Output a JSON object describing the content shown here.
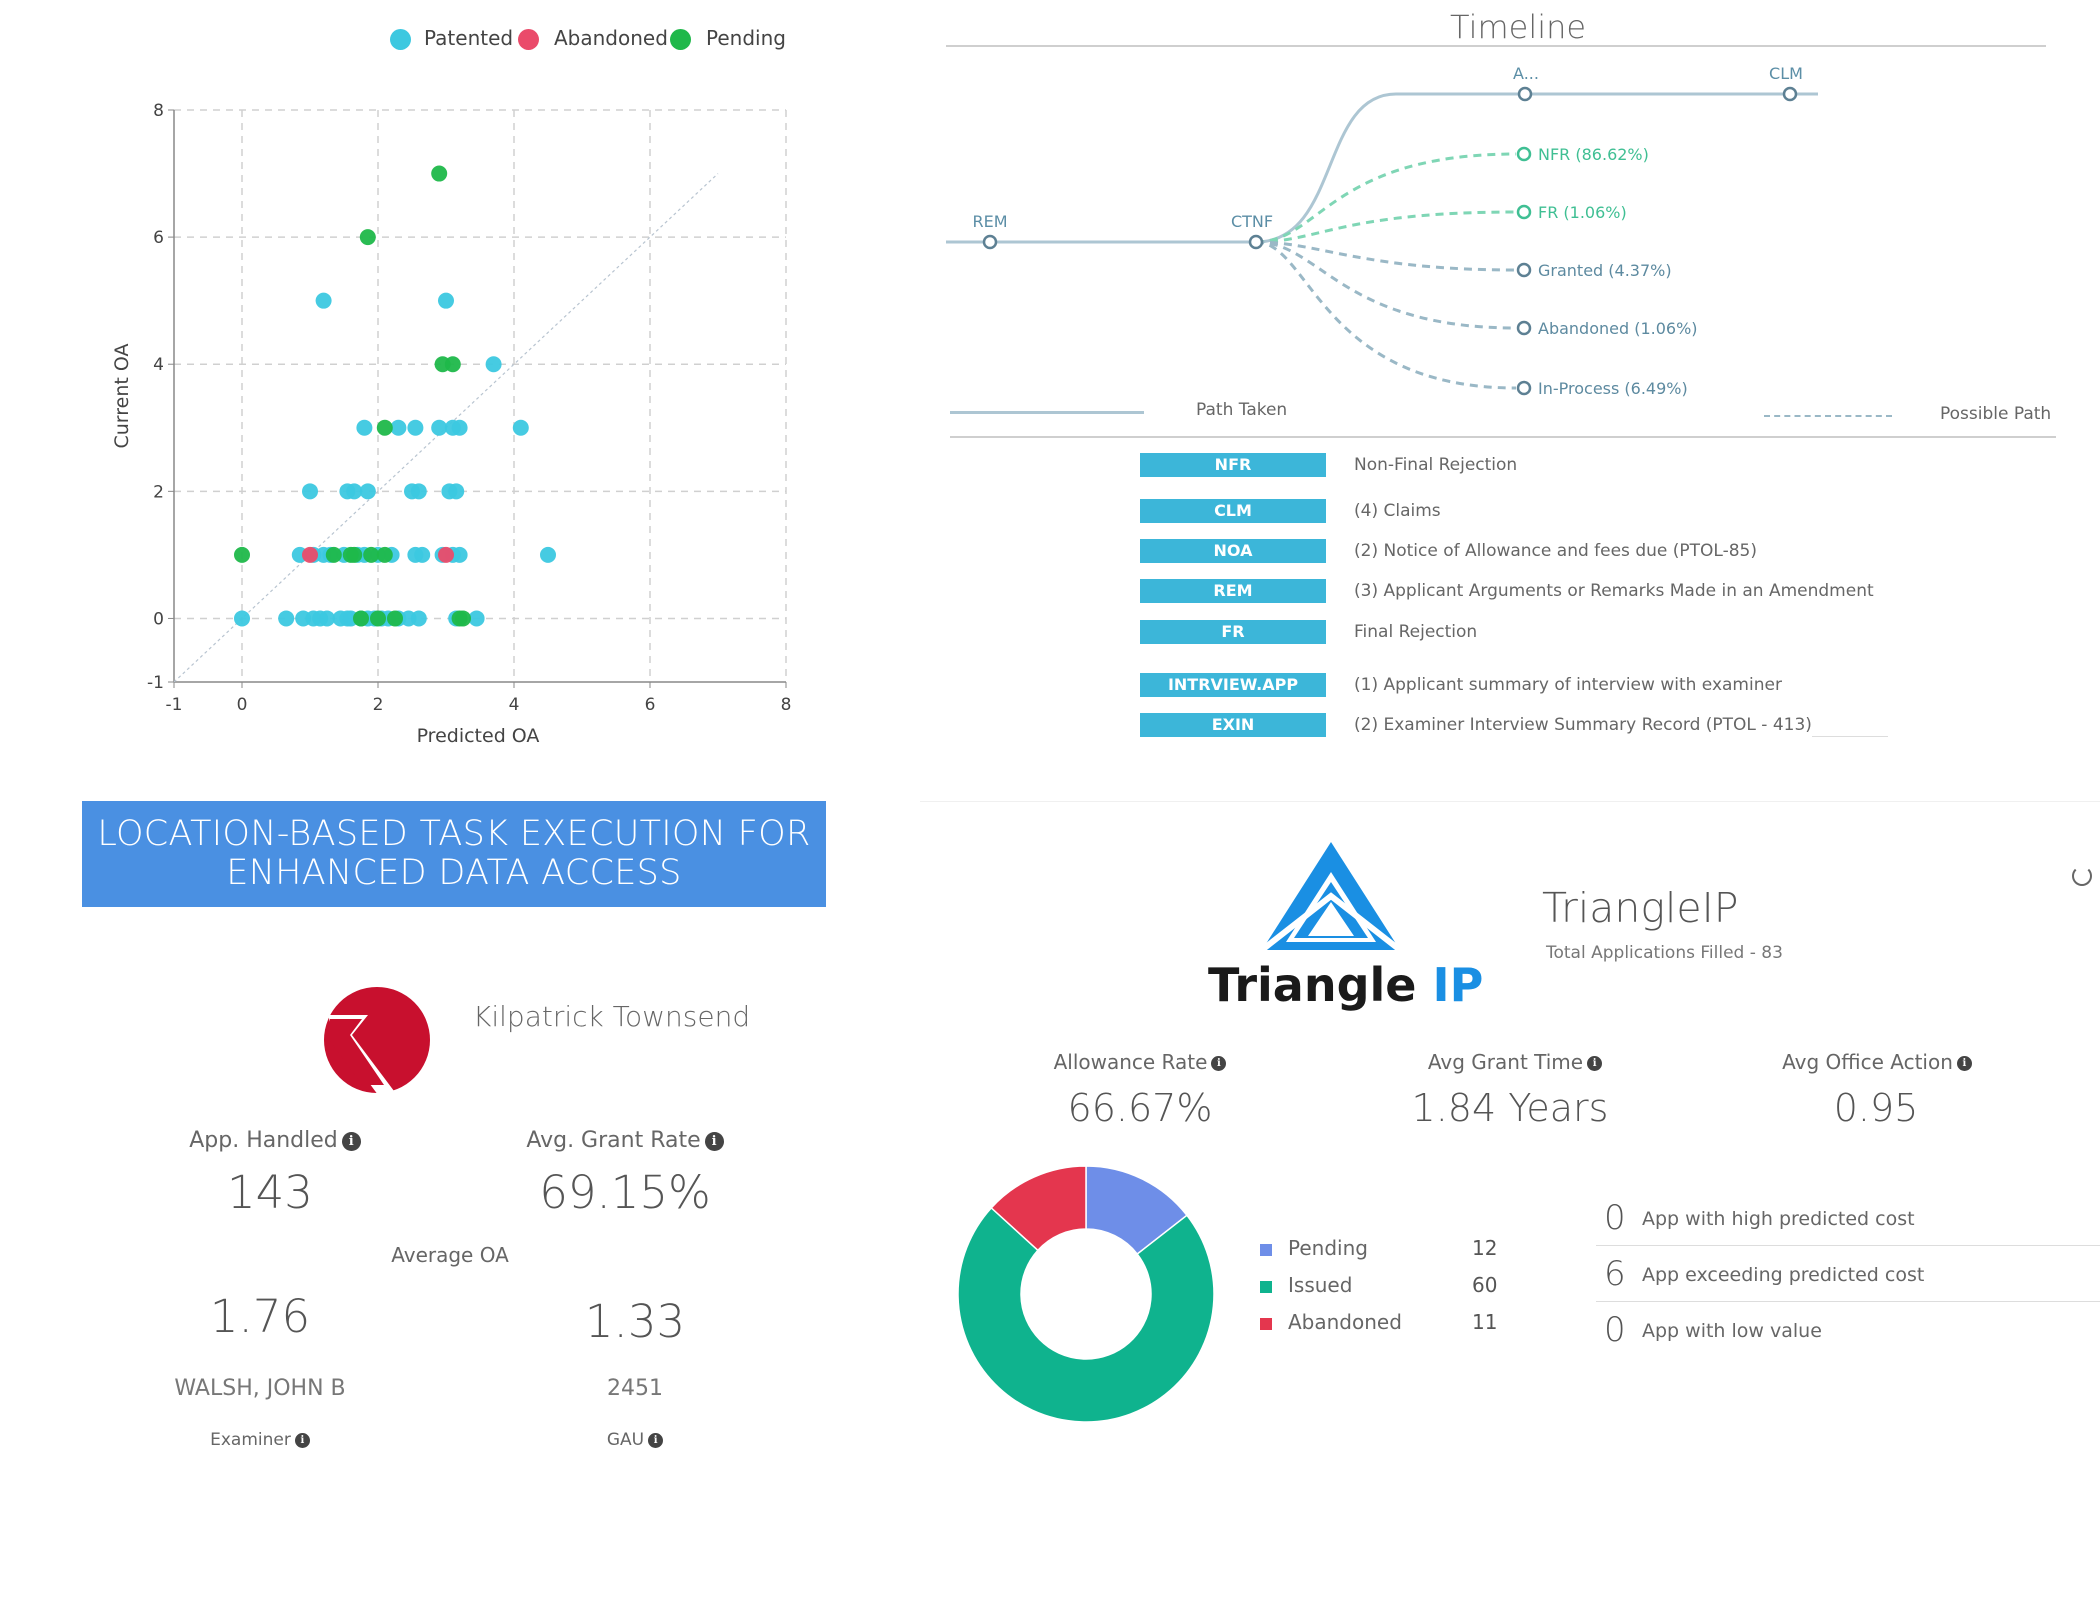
{
  "scatter": {
    "legend": [
      {
        "name": "Patented",
        "color": "#3cc8e0"
      },
      {
        "name": "Abandoned",
        "color": "#ea4b6a"
      },
      {
        "name": "Pending",
        "color": "#1fb84a"
      }
    ],
    "xlabel": "Predicted OA",
    "ylabel": "Current OA",
    "xticks": [
      "-1",
      "0",
      "2",
      "4",
      "6",
      "8"
    ],
    "yticks": [
      "-1",
      "0",
      "2",
      "4",
      "6",
      "8"
    ]
  },
  "chart_data": {
    "type": "scatter",
    "xlabel": "Predicted OA",
    "ylabel": "Current OA",
    "xlim": [
      -1,
      8
    ],
    "ylim": [
      -1,
      8
    ],
    "grid": true,
    "legend_position": "top",
    "series": [
      {
        "name": "Patented",
        "color": "#3cc8e0",
        "points": [
          [
            1.2,
            5
          ],
          [
            3.0,
            5
          ],
          [
            3.7,
            4
          ],
          [
            4.1,
            3
          ],
          [
            1.8,
            3
          ],
          [
            2.3,
            3
          ],
          [
            2.55,
            3
          ],
          [
            2.9,
            3
          ],
          [
            3.1,
            3
          ],
          [
            3.2,
            3
          ],
          [
            1.0,
            2
          ],
          [
            1.55,
            2
          ],
          [
            1.65,
            2
          ],
          [
            1.85,
            2
          ],
          [
            2.5,
            2
          ],
          [
            2.6,
            2
          ],
          [
            3.05,
            2
          ],
          [
            3.15,
            2
          ],
          [
            0.85,
            1
          ],
          [
            1.05,
            1
          ],
          [
            1.2,
            1
          ],
          [
            1.3,
            1
          ],
          [
            1.5,
            1
          ],
          [
            1.7,
            1
          ],
          [
            1.8,
            1
          ],
          [
            2.0,
            1
          ],
          [
            2.2,
            1
          ],
          [
            2.55,
            1
          ],
          [
            2.65,
            1
          ],
          [
            2.95,
            1
          ],
          [
            3.1,
            1
          ],
          [
            3.2,
            1
          ],
          [
            4.5,
            1
          ],
          [
            0,
            0
          ],
          [
            0.65,
            0
          ],
          [
            0.9,
            0
          ],
          [
            1.05,
            0
          ],
          [
            1.15,
            0
          ],
          [
            1.25,
            0
          ],
          [
            1.45,
            0
          ],
          [
            1.55,
            0
          ],
          [
            1.6,
            0
          ],
          [
            1.75,
            0
          ],
          [
            1.85,
            0
          ],
          [
            1.95,
            0
          ],
          [
            2.05,
            0
          ],
          [
            2.15,
            0
          ],
          [
            2.3,
            0
          ],
          [
            2.45,
            0
          ],
          [
            2.6,
            0
          ],
          [
            3.15,
            0
          ],
          [
            3.45,
            0
          ]
        ]
      },
      {
        "name": "Abandoned",
        "color": "#ea4b6a",
        "points": [
          [
            1.0,
            1
          ],
          [
            3.0,
            1
          ]
        ]
      },
      {
        "name": "Pending",
        "color": "#1fb84a",
        "points": [
          [
            2.9,
            7
          ],
          [
            1.85,
            6
          ],
          [
            2.95,
            4
          ],
          [
            3.1,
            4
          ],
          [
            2.1,
            3
          ],
          [
            0,
            1
          ],
          [
            1.35,
            1
          ],
          [
            1.6,
            1
          ],
          [
            1.65,
            1
          ],
          [
            1.9,
            1
          ],
          [
            2.1,
            1
          ],
          [
            1.75,
            0
          ],
          [
            2.0,
            0
          ],
          [
            2.25,
            0
          ],
          [
            3.2,
            0
          ],
          [
            3.25,
            0
          ]
        ]
      }
    ]
  },
  "timeline": {
    "title": "Timeline",
    "nodes": {
      "rem": "REM",
      "ctnf": "CTNF",
      "a": "A...",
      "clm": "CLM"
    },
    "branches": [
      {
        "label": "NFR (86.62%)",
        "color": "#4fc79f"
      },
      {
        "label": "FR (1.06%)",
        "color": "#4fc79f"
      },
      {
        "label": "Granted (4.37%)",
        "color": "#7aa0b5"
      },
      {
        "label": "Abandoned (1.06%)",
        "color": "#7aa0b5"
      },
      {
        "label": "In-Process (6.49%)",
        "color": "#7aa0b5"
      }
    ],
    "path_taken": "Path Taken",
    "possible_path": "Possible Path",
    "codes": [
      {
        "code": "NFR",
        "desc": "Non-Final Rejection"
      },
      {
        "code": "CLM",
        "desc": "(4) Claims"
      },
      {
        "code": "NOA",
        "desc": "(2) Notice of Allowance and fees due (PTOL-85)"
      },
      {
        "code": "REM",
        "desc": "(3) Applicant Arguments or Remarks Made in an Amendment"
      },
      {
        "code": "FR",
        "desc": "Final Rejection"
      },
      {
        "code": "INTRVIEW.APP",
        "desc": "(1) Applicant summary of interview with examiner"
      },
      {
        "code": "EXIN",
        "desc": "(2) Examiner Interview Summary Record (PTOL - 413)"
      }
    ]
  },
  "banner": {
    "line1": "LOCATION-BASED TASK EXECUTION FOR",
    "line2": "ENHANCED DATA ACCESS"
  },
  "firm": {
    "name": "Kilpatrick Townsend",
    "app_handled_label": "App. Handled",
    "app_handled": "143",
    "grant_rate_label": "Avg. Grant Rate",
    "grant_rate": "69.15%",
    "average_oa_label": "Average OA",
    "oa_left": "1.76",
    "oa_right": "1.33",
    "examiner_name": "WALSH, JOHN B",
    "examiner_label": "Examiner",
    "gau_value": "2451",
    "gau_label": "GAU"
  },
  "triangle": {
    "logo_text_a": "Triangle",
    "logo_text_b": "IP",
    "name": "TriangleIP",
    "total": "Total Applications Filled - 83",
    "allowance_label": "Allowance Rate",
    "allowance": "66.67%",
    "grant_time_label": "Avg Grant Time",
    "grant_time": "1.84 Years",
    "office_action_label": "Avg Office Action",
    "office_action": "0.95",
    "donut": [
      {
        "name": "Pending",
        "value": 12,
        "color": "#6e8ee8"
      },
      {
        "name": "Issued",
        "value": 60,
        "color": "#0fb38e"
      },
      {
        "name": "Abandoned",
        "value": 11,
        "color": "#e4364e"
      }
    ],
    "predictions": [
      {
        "num": "0",
        "text": "App with high predicted cost"
      },
      {
        "num": "6",
        "text": "App exceeding predicted cost"
      },
      {
        "num": "0",
        "text": "App with low value"
      }
    ]
  }
}
